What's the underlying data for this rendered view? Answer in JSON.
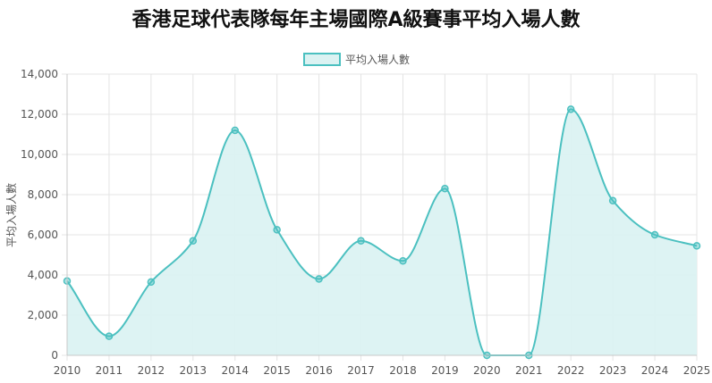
{
  "chart_data": {
    "type": "area",
    "title": "香港足球代表隊每年主場國際A級賽事平均入場人數",
    "ylabel": "平均入場人數",
    "xlabel": "",
    "x": [
      "2010",
      "2011",
      "2012",
      "2013",
      "2014",
      "2015",
      "2016",
      "2017",
      "2018",
      "2019",
      "2020",
      "2021",
      "2022",
      "2023",
      "2024",
      "2025"
    ],
    "series": [
      {
        "name": "平均入場人數",
        "values": [
          3700,
          950,
          3650,
          5700,
          11200,
          6250,
          3800,
          5700,
          4700,
          8300,
          0,
          0,
          12250,
          7700,
          6000,
          5450
        ]
      }
    ],
    "ylim": [
      0,
      14000
    ],
    "yticks": [
      "0",
      "2,000",
      "4,000",
      "6,000",
      "8,000",
      "10,000",
      "12,000",
      "14,000"
    ],
    "grid": true,
    "legend_position": "top-center",
    "colors": {
      "line": "#4bc0c0",
      "fill": "#dbf2f2"
    }
  }
}
